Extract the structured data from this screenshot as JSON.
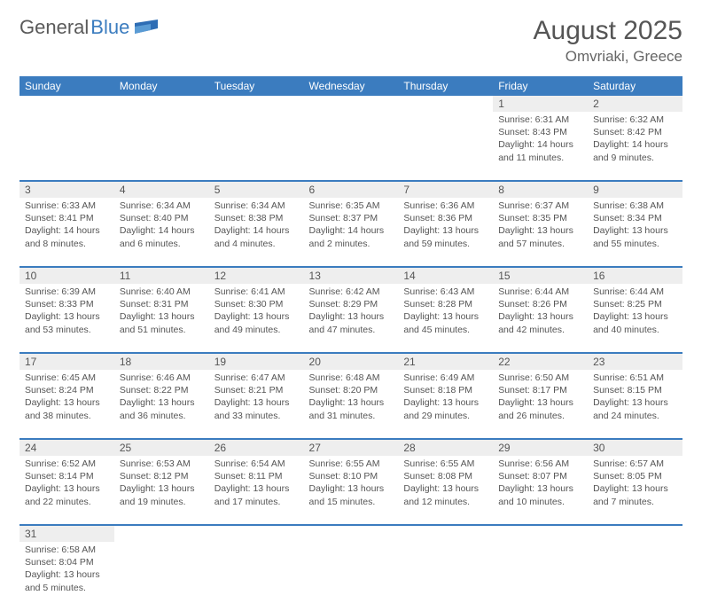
{
  "logo": {
    "part1": "General",
    "part2": "Blue"
  },
  "title": "August 2025",
  "location": "Omvriaki, Greece",
  "colors": {
    "header_bg": "#3b7cbf",
    "header_text": "#ffffff",
    "daynum_bg": "#eeeeee",
    "row_divider": "#3b7cbf",
    "body_text": "#555555"
  },
  "weekdays": [
    "Sunday",
    "Monday",
    "Tuesday",
    "Wednesday",
    "Thursday",
    "Friday",
    "Saturday"
  ],
  "weeks": [
    [
      null,
      null,
      null,
      null,
      null,
      {
        "n": "1",
        "sr": "Sunrise: 6:31 AM",
        "ss": "Sunset: 8:43 PM",
        "d1": "Daylight: 14 hours",
        "d2": "and 11 minutes."
      },
      {
        "n": "2",
        "sr": "Sunrise: 6:32 AM",
        "ss": "Sunset: 8:42 PM",
        "d1": "Daylight: 14 hours",
        "d2": "and 9 minutes."
      }
    ],
    [
      {
        "n": "3",
        "sr": "Sunrise: 6:33 AM",
        "ss": "Sunset: 8:41 PM",
        "d1": "Daylight: 14 hours",
        "d2": "and 8 minutes."
      },
      {
        "n": "4",
        "sr": "Sunrise: 6:34 AM",
        "ss": "Sunset: 8:40 PM",
        "d1": "Daylight: 14 hours",
        "d2": "and 6 minutes."
      },
      {
        "n": "5",
        "sr": "Sunrise: 6:34 AM",
        "ss": "Sunset: 8:38 PM",
        "d1": "Daylight: 14 hours",
        "d2": "and 4 minutes."
      },
      {
        "n": "6",
        "sr": "Sunrise: 6:35 AM",
        "ss": "Sunset: 8:37 PM",
        "d1": "Daylight: 14 hours",
        "d2": "and 2 minutes."
      },
      {
        "n": "7",
        "sr": "Sunrise: 6:36 AM",
        "ss": "Sunset: 8:36 PM",
        "d1": "Daylight: 13 hours",
        "d2": "and 59 minutes."
      },
      {
        "n": "8",
        "sr": "Sunrise: 6:37 AM",
        "ss": "Sunset: 8:35 PM",
        "d1": "Daylight: 13 hours",
        "d2": "and 57 minutes."
      },
      {
        "n": "9",
        "sr": "Sunrise: 6:38 AM",
        "ss": "Sunset: 8:34 PM",
        "d1": "Daylight: 13 hours",
        "d2": "and 55 minutes."
      }
    ],
    [
      {
        "n": "10",
        "sr": "Sunrise: 6:39 AM",
        "ss": "Sunset: 8:33 PM",
        "d1": "Daylight: 13 hours",
        "d2": "and 53 minutes."
      },
      {
        "n": "11",
        "sr": "Sunrise: 6:40 AM",
        "ss": "Sunset: 8:31 PM",
        "d1": "Daylight: 13 hours",
        "d2": "and 51 minutes."
      },
      {
        "n": "12",
        "sr": "Sunrise: 6:41 AM",
        "ss": "Sunset: 8:30 PM",
        "d1": "Daylight: 13 hours",
        "d2": "and 49 minutes."
      },
      {
        "n": "13",
        "sr": "Sunrise: 6:42 AM",
        "ss": "Sunset: 8:29 PM",
        "d1": "Daylight: 13 hours",
        "d2": "and 47 minutes."
      },
      {
        "n": "14",
        "sr": "Sunrise: 6:43 AM",
        "ss": "Sunset: 8:28 PM",
        "d1": "Daylight: 13 hours",
        "d2": "and 45 minutes."
      },
      {
        "n": "15",
        "sr": "Sunrise: 6:44 AM",
        "ss": "Sunset: 8:26 PM",
        "d1": "Daylight: 13 hours",
        "d2": "and 42 minutes."
      },
      {
        "n": "16",
        "sr": "Sunrise: 6:44 AM",
        "ss": "Sunset: 8:25 PM",
        "d1": "Daylight: 13 hours",
        "d2": "and 40 minutes."
      }
    ],
    [
      {
        "n": "17",
        "sr": "Sunrise: 6:45 AM",
        "ss": "Sunset: 8:24 PM",
        "d1": "Daylight: 13 hours",
        "d2": "and 38 minutes."
      },
      {
        "n": "18",
        "sr": "Sunrise: 6:46 AM",
        "ss": "Sunset: 8:22 PM",
        "d1": "Daylight: 13 hours",
        "d2": "and 36 minutes."
      },
      {
        "n": "19",
        "sr": "Sunrise: 6:47 AM",
        "ss": "Sunset: 8:21 PM",
        "d1": "Daylight: 13 hours",
        "d2": "and 33 minutes."
      },
      {
        "n": "20",
        "sr": "Sunrise: 6:48 AM",
        "ss": "Sunset: 8:20 PM",
        "d1": "Daylight: 13 hours",
        "d2": "and 31 minutes."
      },
      {
        "n": "21",
        "sr": "Sunrise: 6:49 AM",
        "ss": "Sunset: 8:18 PM",
        "d1": "Daylight: 13 hours",
        "d2": "and 29 minutes."
      },
      {
        "n": "22",
        "sr": "Sunrise: 6:50 AM",
        "ss": "Sunset: 8:17 PM",
        "d1": "Daylight: 13 hours",
        "d2": "and 26 minutes."
      },
      {
        "n": "23",
        "sr": "Sunrise: 6:51 AM",
        "ss": "Sunset: 8:15 PM",
        "d1": "Daylight: 13 hours",
        "d2": "and 24 minutes."
      }
    ],
    [
      {
        "n": "24",
        "sr": "Sunrise: 6:52 AM",
        "ss": "Sunset: 8:14 PM",
        "d1": "Daylight: 13 hours",
        "d2": "and 22 minutes."
      },
      {
        "n": "25",
        "sr": "Sunrise: 6:53 AM",
        "ss": "Sunset: 8:12 PM",
        "d1": "Daylight: 13 hours",
        "d2": "and 19 minutes."
      },
      {
        "n": "26",
        "sr": "Sunrise: 6:54 AM",
        "ss": "Sunset: 8:11 PM",
        "d1": "Daylight: 13 hours",
        "d2": "and 17 minutes."
      },
      {
        "n": "27",
        "sr": "Sunrise: 6:55 AM",
        "ss": "Sunset: 8:10 PM",
        "d1": "Daylight: 13 hours",
        "d2": "and 15 minutes."
      },
      {
        "n": "28",
        "sr": "Sunrise: 6:55 AM",
        "ss": "Sunset: 8:08 PM",
        "d1": "Daylight: 13 hours",
        "d2": "and 12 minutes."
      },
      {
        "n": "29",
        "sr": "Sunrise: 6:56 AM",
        "ss": "Sunset: 8:07 PM",
        "d1": "Daylight: 13 hours",
        "d2": "and 10 minutes."
      },
      {
        "n": "30",
        "sr": "Sunrise: 6:57 AM",
        "ss": "Sunset: 8:05 PM",
        "d1": "Daylight: 13 hours",
        "d2": "and 7 minutes."
      }
    ],
    [
      {
        "n": "31",
        "sr": "Sunrise: 6:58 AM",
        "ss": "Sunset: 8:04 PM",
        "d1": "Daylight: 13 hours",
        "d2": "and 5 minutes."
      },
      null,
      null,
      null,
      null,
      null,
      null
    ]
  ]
}
